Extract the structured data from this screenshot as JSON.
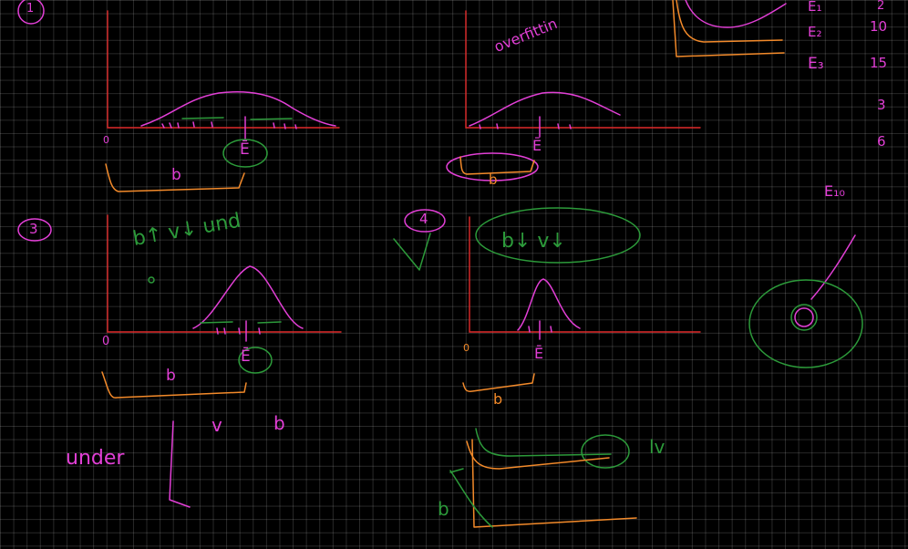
{
  "labels": {
    "panel1_number": "1",
    "panel3_number": "3",
    "panel4_number": "4",
    "overfitting": "overfittin",
    "under": "under",
    "bv_under": "b↑ v↓  und",
    "bv_over": "b↓  v↓",
    "v": "v",
    "b": "b",
    "zero": "0",
    "e_bar": "Ē",
    "lv": "lv",
    "check": "√",
    "e_values": [
      "E₁",
      "E₂",
      "E₃",
      "E₁₀"
    ],
    "right_numbers": [
      "2",
      "10",
      "15",
      "3",
      "6"
    ]
  },
  "colors": {
    "background": "#000000",
    "grid": "#3a3a3a",
    "axes": "#e02a2a",
    "magenta": "#e23fd6",
    "orange": "#f38a2a",
    "green": "#2c9a3a"
  }
}
